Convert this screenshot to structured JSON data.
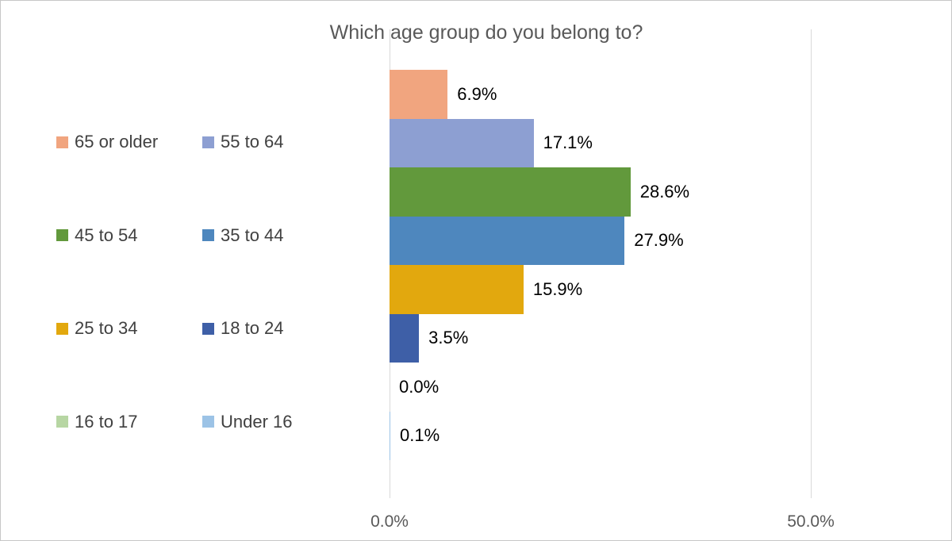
{
  "chart_data": {
    "type": "bar",
    "orientation": "horizontal",
    "title": "Which age group do you belong to?",
    "categories": [
      "65 or older",
      "55 to 64",
      "45 to 54",
      "35 to 44",
      "25 to 34",
      "18 to 24",
      "16 to 17",
      "Under 16"
    ],
    "values": [
      6.9,
      17.1,
      28.6,
      27.9,
      15.9,
      3.5,
      0.0,
      0.1
    ],
    "data_labels": [
      "6.9%",
      "17.1%",
      "28.6%",
      "27.9%",
      "15.9%",
      "3.5%",
      "0.0%",
      "0.1%"
    ],
    "bar_colors": [
      "#F1A57F",
      "#8D9FD2",
      "#62993C",
      "#4E87BE",
      "#E2A80E",
      "#3E5FA7",
      "#B7D6A3",
      "#9CC3E6"
    ],
    "xlim": [
      0,
      50
    ],
    "x_tick_values": [
      0,
      50
    ],
    "x_tick_labels": [
      "0.0%",
      "50.0%"
    ],
    "grid": "vertical major gridlines only",
    "legend_position": "left, two columns",
    "legend_rows": [
      [
        "65 or older",
        "55 to 64"
      ],
      [
        "45 to 54",
        "35 to 44"
      ],
      [
        "25 to 34",
        "18 to 24"
      ],
      [
        "16 to 17",
        "Under 16"
      ]
    ]
  },
  "colors": {
    "title_text": "#595959",
    "legend_text": "#404040",
    "data_label_text": "#000000",
    "axis_tick_text": "#595959",
    "gridline": "#D9D9D9",
    "chart_border": "#C7C7C7",
    "background": "#FFFFFF"
  }
}
